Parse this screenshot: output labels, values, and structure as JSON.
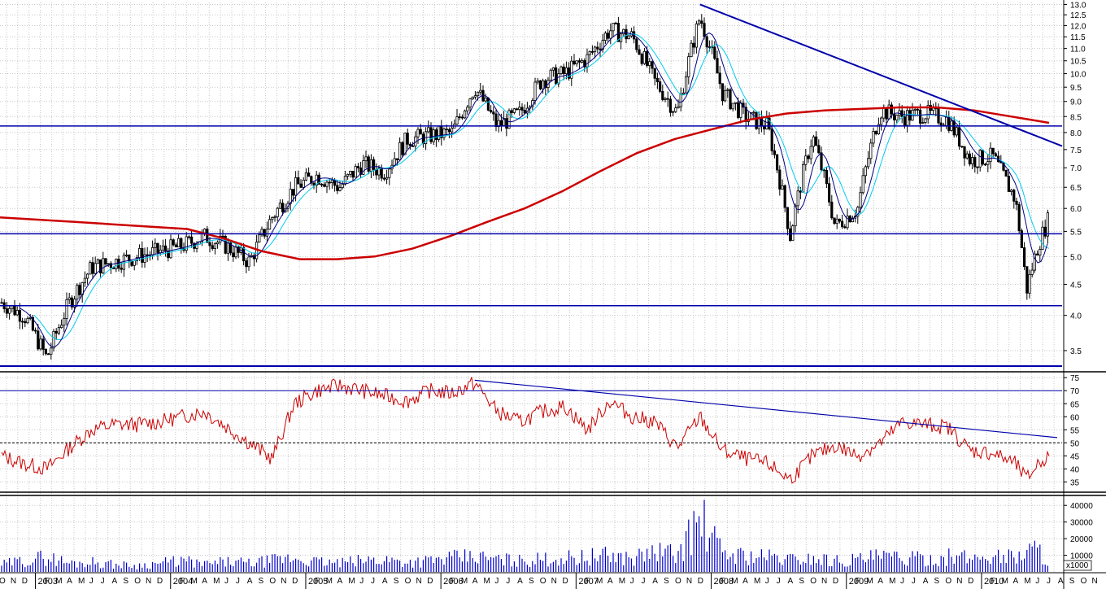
{
  "chart_data": [
    {
      "type": "candlestick",
      "panel": "price",
      "ylim": [
        3.25,
        13.1
      ],
      "log_scale": true,
      "grid": true,
      "y_ticks": [
        "13.0",
        "12.5",
        "12.0",
        "11.5",
        "11.0",
        "10.5",
        "10.0",
        "9.5",
        "9.0",
        "8.5",
        "8.0",
        "7.5",
        "7.0",
        "6.5",
        "6.0",
        "5.5",
        "5.0",
        "4.5",
        "4.0",
        "3.5"
      ],
      "horizontal_lines": [
        8.2,
        5.45,
        4.15,
        3.3
      ],
      "trendline": {
        "from": [
          "2007-12",
          13.0
        ],
        "to": [
          "2010-08",
          7.6
        ]
      },
      "series": [
        {
          "name": "",
          "kind": "close_path",
          "x": [
            "2002-10",
            "2002-12",
            "2003-02",
            "2003-04",
            "2003-06",
            "2003-08",
            "2003-10",
            "2003-12",
            "2004-02",
            "2004-04",
            "2004-06",
            "2004-08",
            "2004-10",
            "2004-12",
            "2005-02",
            "2005-04",
            "2005-06",
            "2005-08",
            "2005-10",
            "2005-12",
            "2006-02",
            "2006-04",
            "2006-06",
            "2006-08",
            "2006-10",
            "2006-12",
            "2007-02",
            "2007-04",
            "2007-06",
            "2007-08",
            "2007-10",
            "2007-12",
            "2008-02",
            "2008-04",
            "2008-06",
            "2008-08",
            "2008-10",
            "2008-12",
            "2009-02",
            "2009-04",
            "2009-06",
            "2009-08",
            "2009-10",
            "2009-12",
            "2010-02",
            "2010-04",
            "2010-05",
            "2010-06",
            "2010-07"
          ],
          "values": [
            4.2,
            4.0,
            3.4,
            4.2,
            4.8,
            4.9,
            5.0,
            5.1,
            5.2,
            5.4,
            5.2,
            4.9,
            5.8,
            6.5,
            6.8,
            6.5,
            7.1,
            6.9,
            7.8,
            7.9,
            8.0,
            9.5,
            8.2,
            8.6,
            9.8,
            10.0,
            10.6,
            11.8,
            11.5,
            9.7,
            8.6,
            12.4,
            9.3,
            8.5,
            8.2,
            5.4,
            7.9,
            5.6,
            6.0,
            8.7,
            8.5,
            8.6,
            8.4,
            7.2,
            7.3,
            6.2,
            4.4,
            5.2,
            5.8
          ]
        },
        {
          "name": "",
          "kind": "sma_long",
          "color": "#cc0000",
          "values": [
            5.8,
            5.75,
            5.7,
            5.65,
            5.6,
            5.55,
            5.35,
            5.1,
            4.95,
            4.95,
            5.0,
            5.15,
            5.4,
            5.7,
            6.0,
            6.4,
            6.9,
            7.4,
            7.8,
            8.1,
            8.4,
            8.6,
            8.7,
            8.75,
            8.8,
            8.8,
            8.7,
            8.5,
            8.3
          ]
        }
      ]
    },
    {
      "type": "line",
      "panel": "oscillator",
      "ylim": [
        32,
        76
      ],
      "y_ticks": [
        "75",
        "70",
        "65",
        "60",
        "55",
        "50",
        "45",
        "40",
        "35"
      ],
      "horizontal_lines": [
        70,
        50
      ],
      "dashed_line": 50,
      "trendline": {
        "from": [
          "2006-04",
          74
        ],
        "to": [
          "2010-08",
          52
        ]
      },
      "series": [
        {
          "name": "",
          "color": "#cc0000",
          "x": [
            "2002-10",
            "2002-12",
            "2003-02",
            "2003-04",
            "2003-06",
            "2003-08",
            "2003-10",
            "2003-12",
            "2004-02",
            "2004-04",
            "2004-06",
            "2004-08",
            "2004-10",
            "2004-12",
            "2005-02",
            "2005-04",
            "2005-06",
            "2005-08",
            "2005-10",
            "2005-12",
            "2006-02",
            "2006-04",
            "2006-06",
            "2006-08",
            "2006-10",
            "2006-12",
            "2007-02",
            "2007-04",
            "2007-06",
            "2007-08",
            "2007-10",
            "2007-12",
            "2008-02",
            "2008-04",
            "2008-06",
            "2008-08",
            "2008-10",
            "2008-12",
            "2009-02",
            "2009-04",
            "2009-06",
            "2009-08",
            "2009-10",
            "2009-12",
            "2010-02",
            "2010-04",
            "2010-05",
            "2010-06",
            "2010-07"
          ],
          "values": [
            45,
            42,
            40,
            48,
            55,
            57,
            57,
            58,
            60,
            62,
            56,
            50,
            44,
            65,
            70,
            72,
            70,
            68,
            66,
            70,
            69,
            73,
            62,
            58,
            62,
            64,
            55,
            66,
            60,
            58,
            48,
            60,
            47,
            44,
            42,
            36,
            45,
            49,
            45,
            50,
            58,
            57,
            56,
            47,
            46,
            42,
            36,
            42,
            45
          ]
        }
      ]
    },
    {
      "type": "bar",
      "panel": "volume",
      "ylim": [
        0,
        45000
      ],
      "y_ticks": [
        "40000",
        "30000",
        "20000",
        "10000"
      ],
      "unit": "x1000",
      "x": [
        "2002-10",
        "2002-12",
        "2003-02",
        "2003-04",
        "2003-06",
        "2003-08",
        "2003-10",
        "2003-12",
        "2004-02",
        "2004-04",
        "2004-06",
        "2004-08",
        "2004-10",
        "2004-12",
        "2005-02",
        "2005-04",
        "2005-06",
        "2005-08",
        "2005-10",
        "2005-12",
        "2006-02",
        "2006-04",
        "2006-06",
        "2006-08",
        "2006-10",
        "2006-12",
        "2007-02",
        "2007-04",
        "2007-06",
        "2007-08",
        "2007-10",
        "2007-12",
        "2008-02",
        "2008-04",
        "2008-06",
        "2008-08",
        "2008-10",
        "2008-12",
        "2009-02",
        "2009-04",
        "2009-06",
        "2009-08",
        "2009-10",
        "2009-12",
        "2010-02",
        "2010-04",
        "2010-05",
        "2010-06",
        "2010-07"
      ],
      "values": [
        6000,
        9000,
        12000,
        7000,
        8000,
        6000,
        5000,
        7000,
        9000,
        6000,
        8000,
        7000,
        9000,
        11000,
        8000,
        7000,
        9000,
        10000,
        8000,
        9000,
        11000,
        12000,
        10000,
        9000,
        10000,
        11000,
        12000,
        13000,
        11000,
        16000,
        14000,
        42000,
        15000,
        13000,
        12000,
        10000,
        11000,
        9000,
        10000,
        12000,
        11000,
        10000,
        12000,
        11000,
        13000,
        12000,
        17000,
        18000,
        10000
      ]
    }
  ],
  "x_axis": {
    "years": [
      "2003",
      "2004",
      "2005",
      "2006",
      "2007",
      "2008",
      "2009",
      "2010"
    ],
    "months": [
      "O",
      "N",
      "D",
      "J",
      "F",
      "M",
      "A",
      "M",
      "J",
      "J",
      "A",
      "S",
      "O"
    ]
  }
}
